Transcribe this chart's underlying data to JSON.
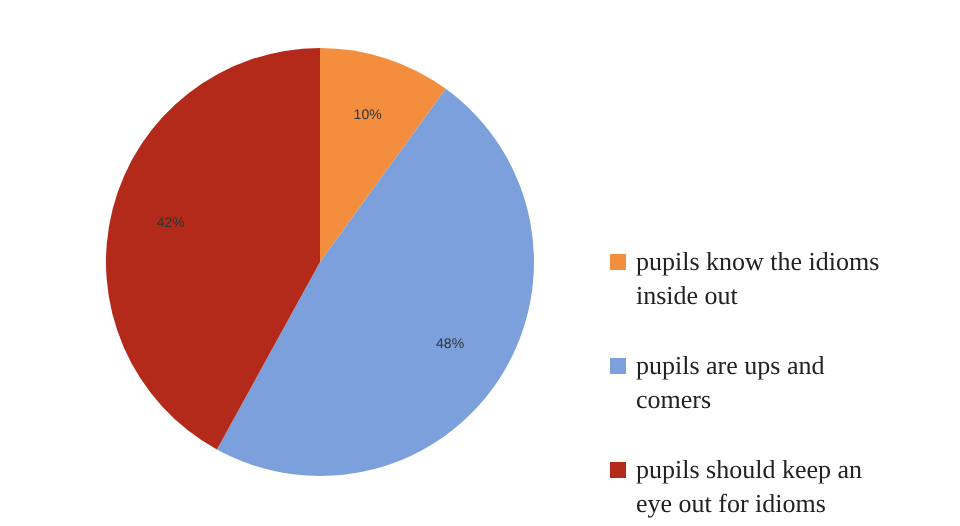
{
  "chart_data": {
    "type": "pie",
    "categories": [
      "pupils know the idioms inside out",
      "pupils are ups and comers",
      "pupils should keep an eye out for idioms"
    ],
    "values": [
      10,
      48,
      42
    ],
    "colors": [
      "#f28e3e",
      "#7ba0dc",
      "#b3291a"
    ],
    "value_labels": [
      "10%",
      "48%",
      "42%"
    ],
    "legend": "right"
  }
}
